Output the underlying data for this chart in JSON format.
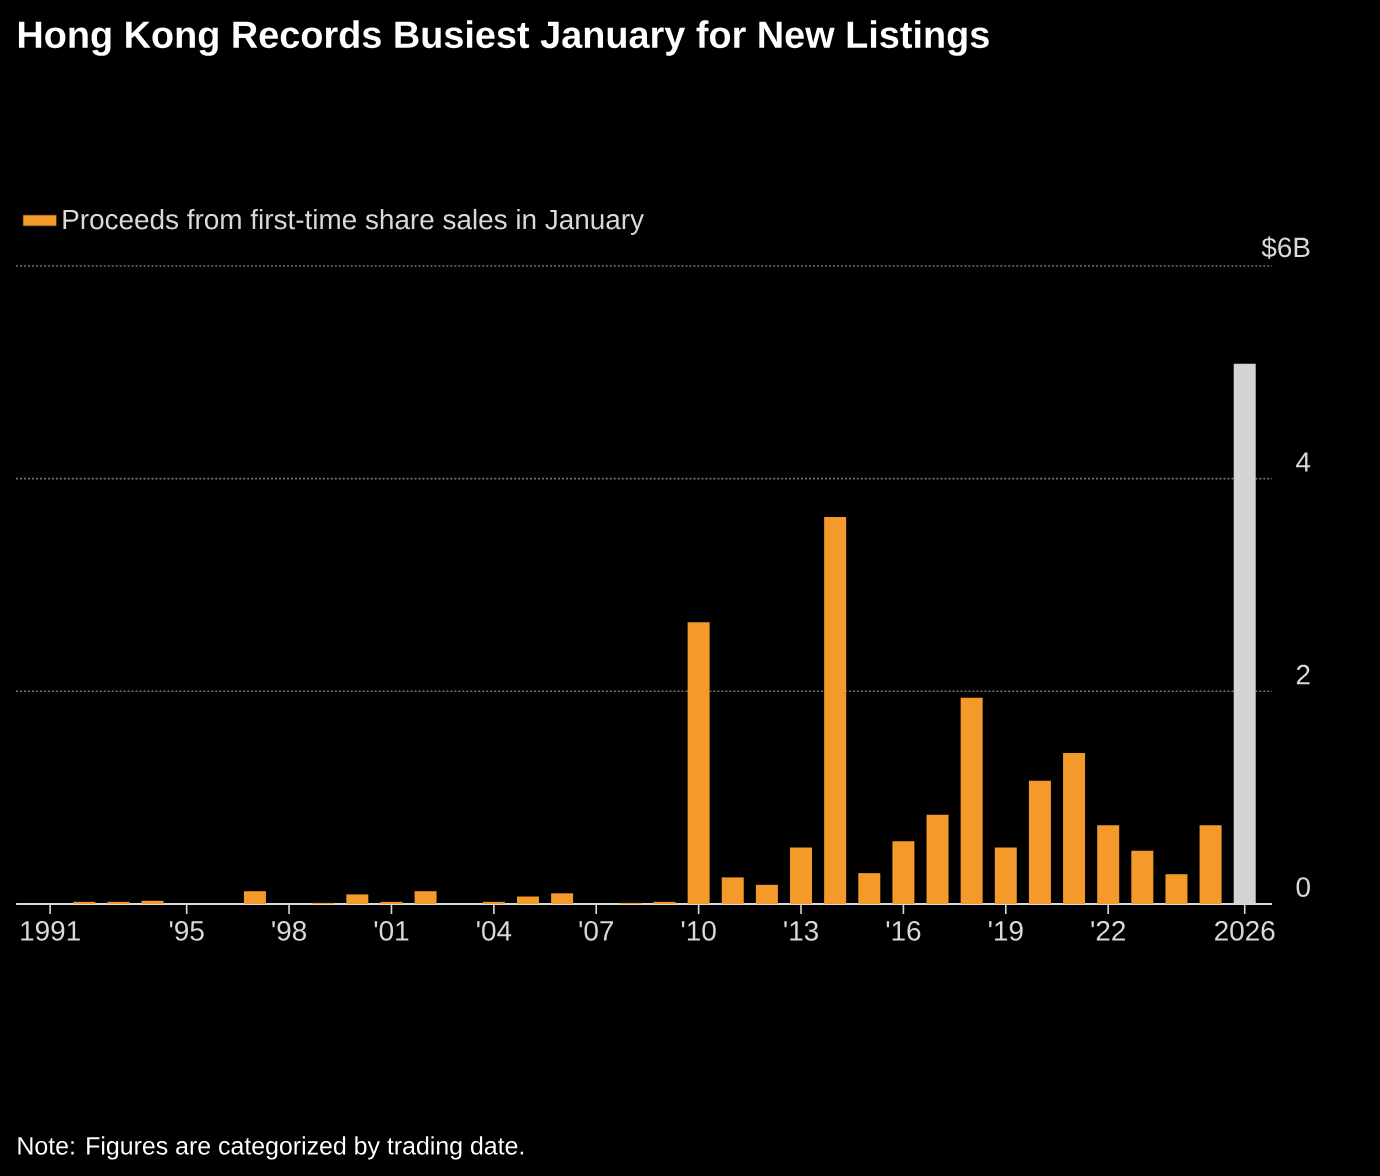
{
  "chart_data": {
    "type": "bar",
    "title": "Hong Kong Records Busiest January for New Listings",
    "categories": [
      "1991",
      null,
      null,
      null,
      "'95",
      null,
      null,
      "'98",
      null,
      null,
      "'01",
      null,
      null,
      "'04",
      null,
      null,
      "'07",
      null,
      null,
      "'10",
      null,
      null,
      "'13",
      null,
      null,
      "'16",
      null,
      null,
      "'19",
      null,
      null,
      "'22",
      null,
      null,
      null,
      "2026"
    ],
    "series": [
      {
        "name": "Proceeds from first-time share sales in January",
        "color": "#f39a2b",
        "colors": [
          "#f39a2b",
          "#f39a2b",
          "#f39a2b",
          "#f39a2b",
          "#f39a2b",
          "#f39a2b",
          "#f39a2b",
          "#f39a2b",
          "#f39a2b",
          "#f39a2b",
          "#f39a2b",
          "#f39a2b",
          "#f39a2b",
          "#f39a2b",
          "#f39a2b",
          "#f39a2b",
          "#f39a2b",
          "#f39a2b",
          "#f39a2b",
          "#f39a2b",
          "#f39a2b",
          "#f39a2b",
          "#f39a2b",
          "#f39a2b",
          "#f39a2b",
          "#f39a2b",
          "#f39a2b",
          "#f39a2b",
          "#f39a2b",
          "#f39a2b",
          "#f39a2b",
          "#f39a2b",
          "#f39a2b",
          "#f39a2b",
          "#f39a2b",
          "#d4d4d4"
        ],
        "values": [
          0,
          0.02,
          0.02,
          0.03,
          0,
          0,
          0.12,
          0,
          0.01,
          0.09,
          0.02,
          0.12,
          0,
          0.02,
          0.07,
          0.1,
          0,
          0.01,
          0.02,
          2.65,
          0.25,
          0.18,
          0.53,
          3.64,
          0.29,
          0.59,
          0.84,
          1.94,
          0.53,
          1.16,
          1.42,
          0.74,
          0.5,
          0.28,
          0.74,
          5.08
        ]
      }
    ],
    "ylim": [
      0,
      6
    ],
    "yticks": [
      0,
      2,
      4,
      {
        "value": 6,
        "label": "$6B"
      }
    ],
    "grid": "y",
    "legend": "top left",
    "annotations": [
      "Note: Figures are categorized by trading date."
    ]
  }
}
